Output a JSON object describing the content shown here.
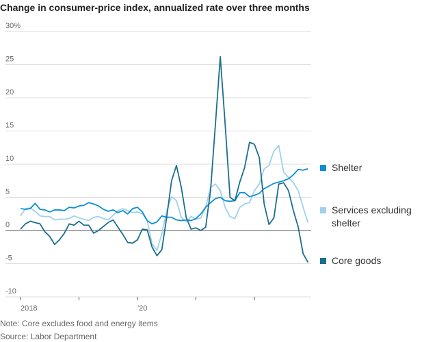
{
  "chart_data": {
    "type": "line",
    "title": "Change in consumer-price index, annualized rate over three months",
    "note": "Note: Core excludes food and energy items",
    "source": "Source: Labor Department",
    "categories": [
      "2018",
      null,
      null,
      null,
      null,
      null,
      null,
      null,
      null,
      null,
      null,
      null,
      null,
      null,
      null,
      null,
      null,
      null,
      null,
      null,
      null,
      null,
      null,
      null,
      "'20",
      null,
      null,
      null,
      null,
      null,
      null,
      null,
      null,
      null,
      null,
      null,
      null,
      null,
      null,
      null,
      null,
      null,
      null,
      null,
      null,
      null,
      null,
      null,
      null,
      null,
      null,
      null,
      null,
      null,
      null,
      null,
      null,
      null,
      null,
      null
    ],
    "ylim": [
      -10,
      30
    ],
    "yticks": [
      -10,
      -5,
      0,
      5,
      10,
      15,
      20,
      25,
      {
        "value": 30,
        "label": "30%"
      }
    ],
    "grid": true,
    "series": [
      {
        "name": "Shelter",
        "color": "#0a8fd0",
        "values": [
          3.3,
          3.2,
          3.3,
          4.1,
          3.2,
          3.1,
          2.8,
          3.1,
          3.1,
          3.0,
          3.5,
          3.4,
          3.7,
          3.8,
          4.2,
          4.0,
          3.7,
          3.2,
          2.9,
          3.1,
          2.7,
          3.0,
          2.5,
          3.3,
          3.5,
          2.8,
          1.5,
          1.0,
          1.3,
          2.2,
          2.0,
          2.0,
          1.6,
          1.5,
          1.6,
          1.5,
          1.8,
          2.5,
          3.5,
          4.2,
          4.8,
          5.0,
          4.5,
          4.4,
          4.5,
          5.7,
          5.7,
          5.1,
          5.3,
          5.6,
          6.3,
          6.7,
          7.1,
          7.3,
          7.5,
          7.8,
          8.4,
          9.2,
          9.1,
          9.3
        ]
      },
      {
        "name": "Services excluding shelter",
        "color": "#9fd0ec",
        "values": [
          2.2,
          3.3,
          3.4,
          2.9,
          2.2,
          2.1,
          2.1,
          1.6,
          1.7,
          1.7,
          1.8,
          2.2,
          1.9,
          1.7,
          1.5,
          2.0,
          2.1,
          1.8,
          1.6,
          2.3,
          3.0,
          3.3,
          3.0,
          2.7,
          2.8,
          2.5,
          1.5,
          -2.0,
          -3.0,
          -0.5,
          3.0,
          5.1,
          4.5,
          2.0,
          1.3,
          2.1,
          1.7,
          1.9,
          3.5,
          6.5,
          7.0,
          6.0,
          3.5,
          2.1,
          1.8,
          3.5,
          4.0,
          4.2,
          6.0,
          7.0,
          9.3,
          9.8,
          12.0,
          12.8,
          8.8,
          8.0,
          7.2,
          6.0,
          3.5,
          1.2
        ]
      },
      {
        "name": "Core goods",
        "color": "#1a6e8e",
        "values": [
          0.2,
          1.0,
          1.4,
          1.2,
          1.0,
          -0.2,
          -0.9,
          -2.1,
          -1.4,
          -0.4,
          1.0,
          0.8,
          1.4,
          0.8,
          0.8,
          -0.4,
          0.0,
          0.6,
          1.2,
          1.6,
          0.5,
          -0.6,
          -1.8,
          -1.9,
          -1.4,
          0.2,
          0.1,
          -2.5,
          -3.8,
          -2.9,
          2.0,
          7.5,
          9.8,
          6.5,
          2.0,
          0.2,
          0.4,
          0.0,
          0.5,
          6.0,
          16.0,
          26.2,
          16.0,
          5.0,
          4.5,
          7.3,
          9.5,
          13.3,
          13.0,
          11.0,
          4.0,
          0.9,
          1.9,
          7.0,
          7.2,
          6.0,
          3.0,
          0.5,
          -3.5,
          -4.8
        ]
      }
    ]
  }
}
